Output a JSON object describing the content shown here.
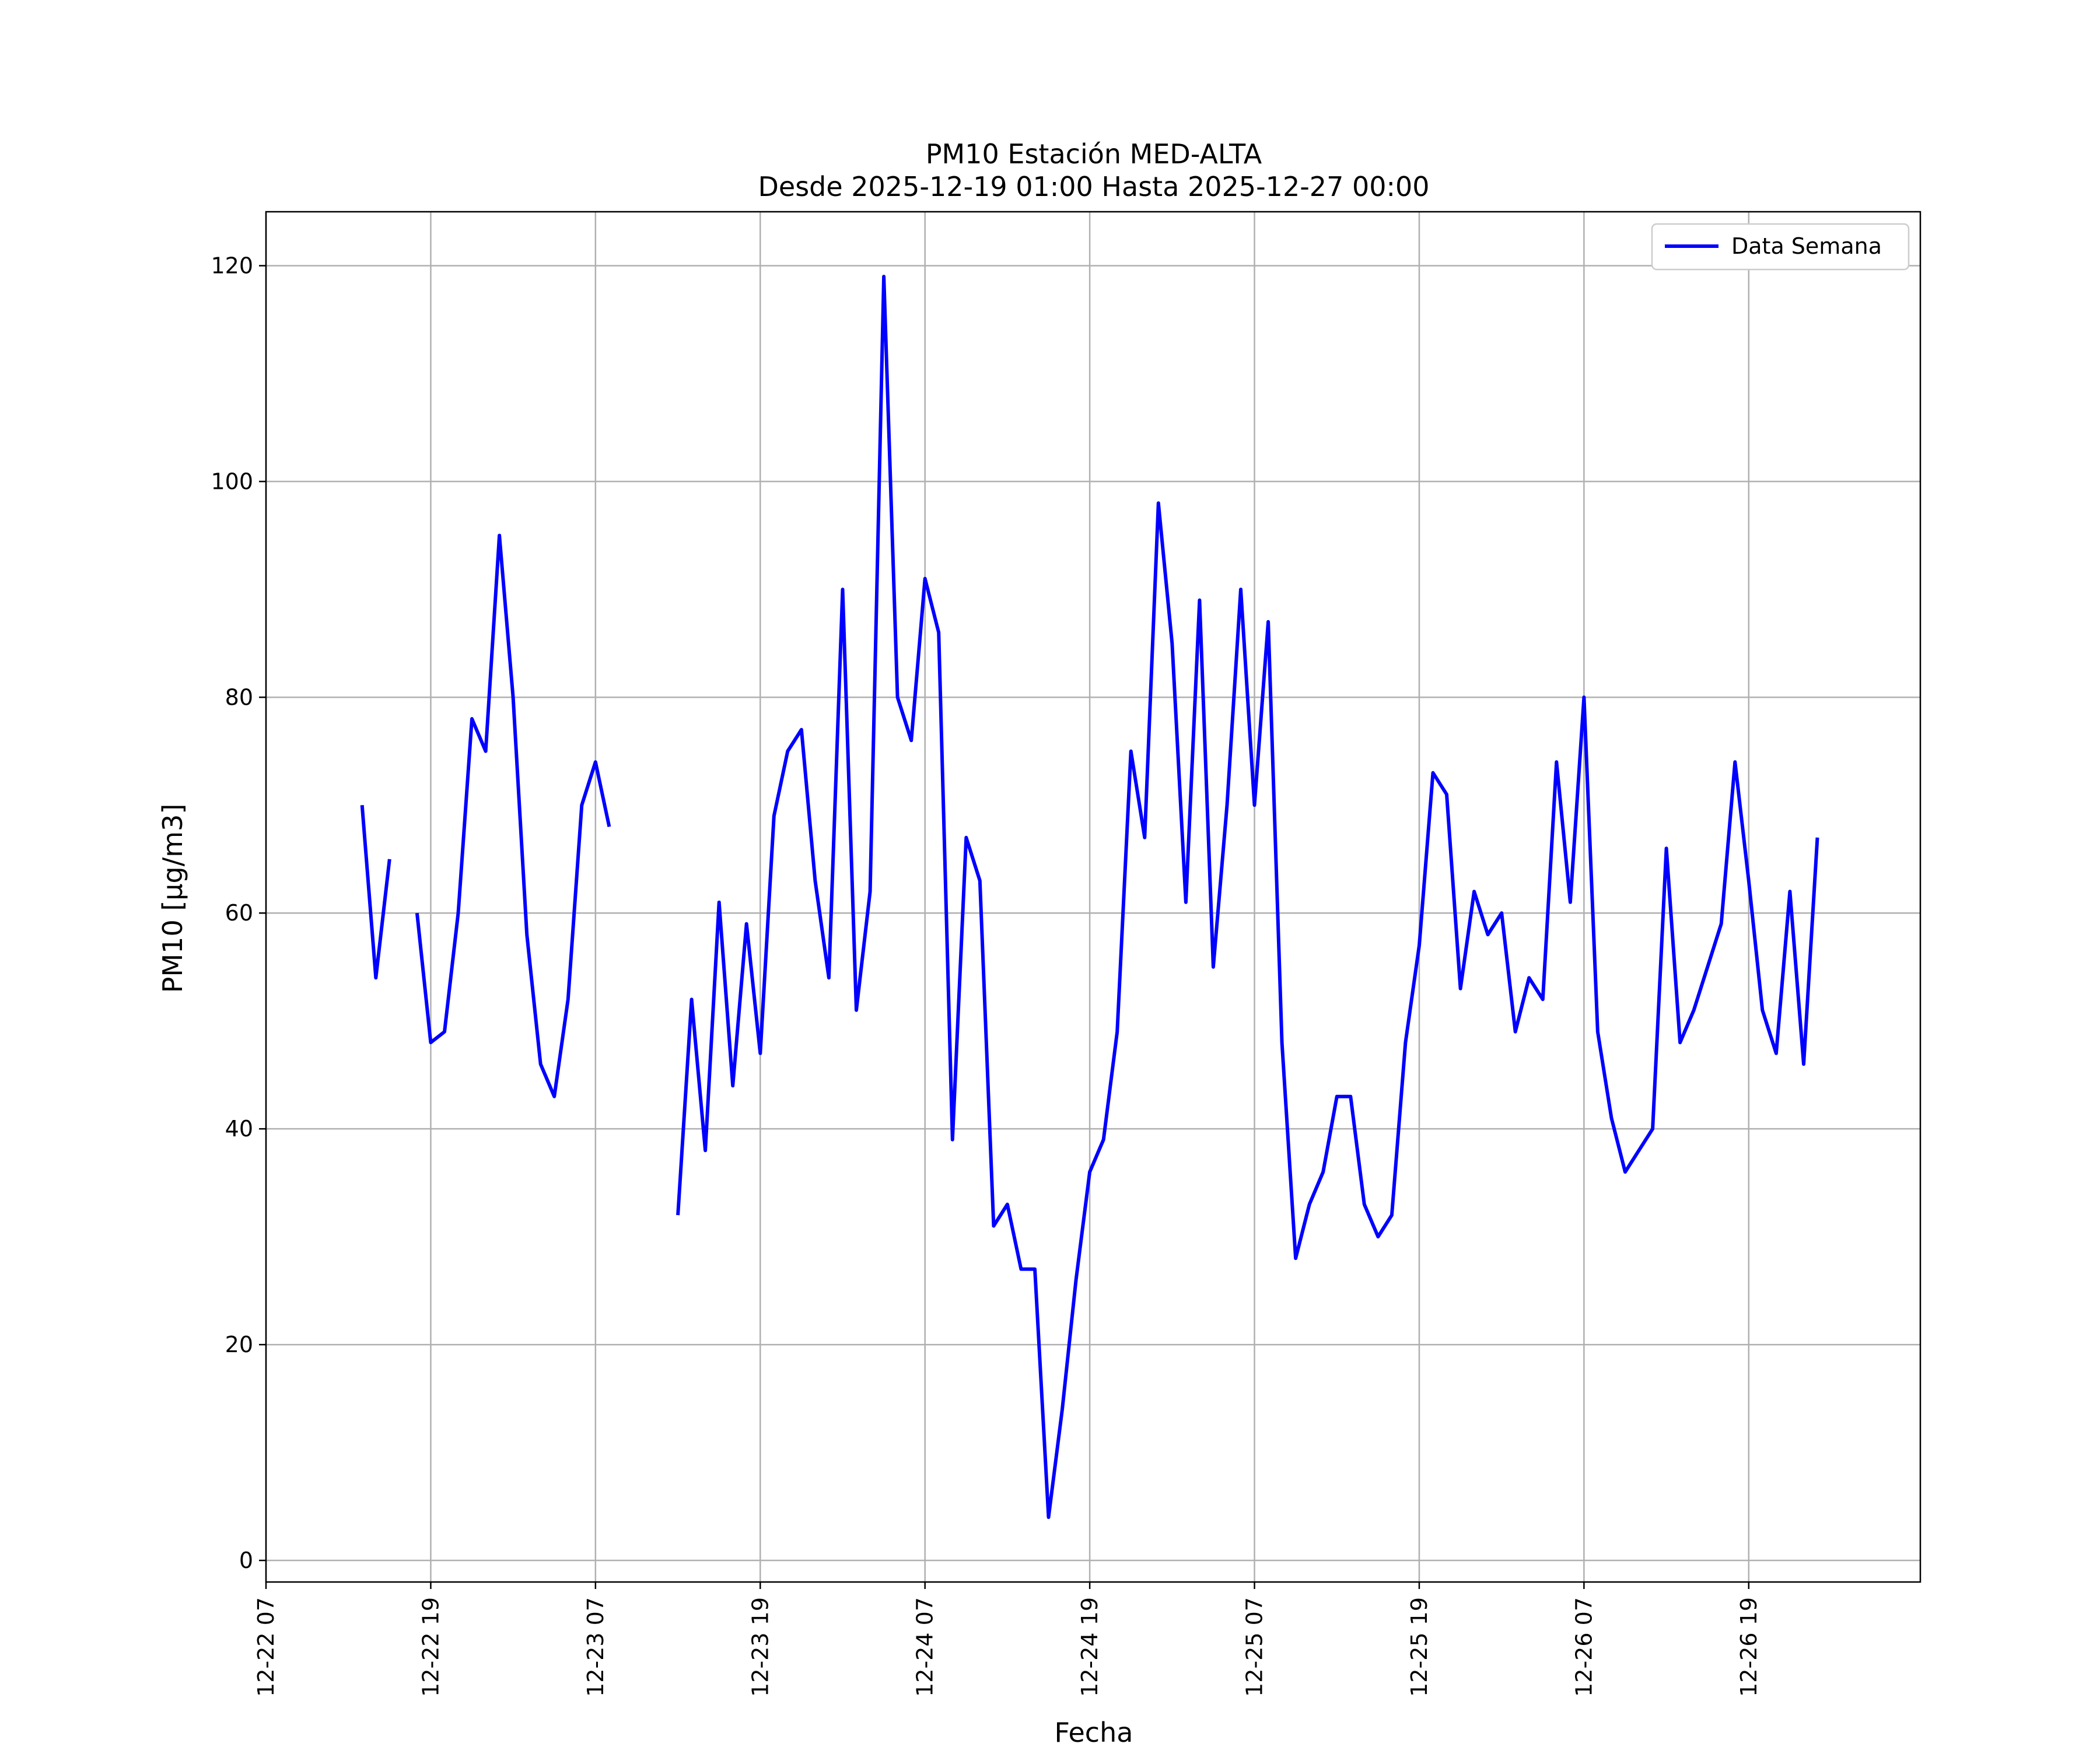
{
  "chart_data": {
    "type": "line",
    "title": "PM10 Estación MED-ALTA",
    "subtitle": "Desde 2025-12-19 01:00 Hasta 2025-12-27 00:00",
    "xlabel": "Fecha",
    "ylabel": "PM10 [μg/m3]",
    "ylim": [
      -2,
      125
    ],
    "yticks": [
      0,
      20,
      40,
      60,
      80,
      100,
      120
    ],
    "xlim": [
      "2025-12-22 07:00",
      "2025-12-27 07:30"
    ],
    "xticks": [
      {
        "t": "2025-12-22 07:00",
        "label": "12-22 07"
      },
      {
        "t": "2025-12-22 19:00",
        "label": "12-22 19"
      },
      {
        "t": "2025-12-23 07:00",
        "label": "12-23 07"
      },
      {
        "t": "2025-12-23 19:00",
        "label": "12-23 19"
      },
      {
        "t": "2025-12-24 07:00",
        "label": "12-24 07"
      },
      {
        "t": "2025-12-24 19:00",
        "label": "12-24 19"
      },
      {
        "t": "2025-12-25 07:00",
        "label": "12-25 07"
      },
      {
        "t": "2025-12-25 19:00",
        "label": "12-25 19"
      },
      {
        "t": "2025-12-26 07:00",
        "label": "12-26 07"
      },
      {
        "t": "2025-12-26 19:00",
        "label": "12-26 19"
      }
    ],
    "grid": true,
    "legend_position": "top-right",
    "series": [
      {
        "name": "Data Semana",
        "color": "#0000ff",
        "points": [
          [
            "2025-12-22 14:00",
            70
          ],
          [
            "2025-12-22 15:00",
            54
          ],
          [
            "2025-12-22 16:00",
            65
          ],
          [
            "2025-12-22 17:00",
            null
          ],
          [
            "2025-12-22 18:00",
            60
          ],
          [
            "2025-12-22 19:00",
            48
          ],
          [
            "2025-12-22 20:00",
            49
          ],
          [
            "2025-12-22 21:00",
            60
          ],
          [
            "2025-12-22 22:00",
            78
          ],
          [
            "2025-12-22 23:00",
            75
          ],
          [
            "2025-12-23 00:00",
            95
          ],
          [
            "2025-12-23 01:00",
            80
          ],
          [
            "2025-12-23 02:00",
            58
          ],
          [
            "2025-12-23 03:00",
            46
          ],
          [
            "2025-12-23 04:00",
            43
          ],
          [
            "2025-12-23 05:00",
            52
          ],
          [
            "2025-12-23 06:00",
            70
          ],
          [
            "2025-12-23 07:00",
            74
          ],
          [
            "2025-12-23 08:00",
            68
          ],
          [
            "2025-12-23 09:00",
            null
          ],
          [
            "2025-12-23 13:00",
            32
          ],
          [
            "2025-12-23 14:00",
            52
          ],
          [
            "2025-12-23 15:00",
            38
          ],
          [
            "2025-12-23 16:00",
            61
          ],
          [
            "2025-12-23 17:00",
            44
          ],
          [
            "2025-12-23 18:00",
            59
          ],
          [
            "2025-12-23 19:00",
            47
          ],
          [
            "2025-12-23 20:00",
            69
          ],
          [
            "2025-12-23 21:00",
            75
          ],
          [
            "2025-12-23 22:00",
            77
          ],
          [
            "2025-12-23 23:00",
            63
          ],
          [
            "2025-12-24 00:00",
            54
          ],
          [
            "2025-12-24 01:00",
            90
          ],
          [
            "2025-12-24 02:00",
            51
          ],
          [
            "2025-12-24 03:00",
            62
          ],
          [
            "2025-12-24 04:00",
            119
          ],
          [
            "2025-12-24 05:00",
            80
          ],
          [
            "2025-12-24 06:00",
            76
          ],
          [
            "2025-12-24 07:00",
            91
          ],
          [
            "2025-12-24 08:00",
            86
          ],
          [
            "2025-12-24 09:00",
            39
          ],
          [
            "2025-12-24 10:00",
            67
          ],
          [
            "2025-12-24 11:00",
            63
          ],
          [
            "2025-12-24 12:00",
            31
          ],
          [
            "2025-12-24 13:00",
            33
          ],
          [
            "2025-12-24 14:00",
            27
          ],
          [
            "2025-12-24 15:00",
            27
          ],
          [
            "2025-12-24 16:00",
            4
          ],
          [
            "2025-12-24 17:00",
            14
          ],
          [
            "2025-12-24 18:00",
            26
          ],
          [
            "2025-12-24 19:00",
            36
          ],
          [
            "2025-12-24 20:00",
            39
          ],
          [
            "2025-12-24 21:00",
            49
          ],
          [
            "2025-12-24 22:00",
            75
          ],
          [
            "2025-12-24 23:00",
            67
          ],
          [
            "2025-12-25 00:00",
            98
          ],
          [
            "2025-12-25 01:00",
            85
          ],
          [
            "2025-12-25 02:00",
            61
          ],
          [
            "2025-12-25 03:00",
            89
          ],
          [
            "2025-12-25 04:00",
            55
          ],
          [
            "2025-12-25 05:00",
            70
          ],
          [
            "2025-12-25 06:00",
            90
          ],
          [
            "2025-12-25 07:00",
            70
          ],
          [
            "2025-12-25 08:00",
            87
          ],
          [
            "2025-12-25 09:00",
            48
          ],
          [
            "2025-12-25 10:00",
            28
          ],
          [
            "2025-12-25 11:00",
            33
          ],
          [
            "2025-12-25 12:00",
            36
          ],
          [
            "2025-12-25 13:00",
            43
          ],
          [
            "2025-12-25 14:00",
            43
          ],
          [
            "2025-12-25 15:00",
            33
          ],
          [
            "2025-12-25 16:00",
            30
          ],
          [
            "2025-12-25 17:00",
            32
          ],
          [
            "2025-12-25 18:00",
            48
          ],
          [
            "2025-12-25 19:00",
            57
          ],
          [
            "2025-12-25 20:00",
            73
          ],
          [
            "2025-12-25 21:00",
            71
          ],
          [
            "2025-12-25 22:00",
            53
          ],
          [
            "2025-12-25 23:00",
            62
          ],
          [
            "2025-12-26 00:00",
            58
          ],
          [
            "2025-12-26 01:00",
            60
          ],
          [
            "2025-12-26 02:00",
            49
          ],
          [
            "2025-12-26 03:00",
            54
          ],
          [
            "2025-12-26 04:00",
            52
          ],
          [
            "2025-12-26 05:00",
            74
          ],
          [
            "2025-12-26 06:00",
            61
          ],
          [
            "2025-12-26 07:00",
            80
          ],
          [
            "2025-12-26 08:00",
            49
          ],
          [
            "2025-12-26 09:00",
            41
          ],
          [
            "2025-12-26 10:00",
            36
          ],
          [
            "2025-12-26 11:00",
            38
          ],
          [
            "2025-12-26 12:00",
            40
          ],
          [
            "2025-12-26 13:00",
            66
          ],
          [
            "2025-12-26 14:00",
            48
          ],
          [
            "2025-12-26 15:00",
            51
          ],
          [
            "2025-12-26 16:00",
            55
          ],
          [
            "2025-12-26 17:00",
            59
          ],
          [
            "2025-12-26 18:00",
            74
          ],
          [
            "2025-12-26 19:00",
            63
          ],
          [
            "2025-12-26 20:00",
            51
          ],
          [
            "2025-12-26 21:00",
            47
          ],
          [
            "2025-12-26 22:00",
            62
          ],
          [
            "2025-12-26 23:00",
            46
          ],
          [
            "2025-12-27 00:00",
            67
          ]
        ]
      }
    ]
  }
}
